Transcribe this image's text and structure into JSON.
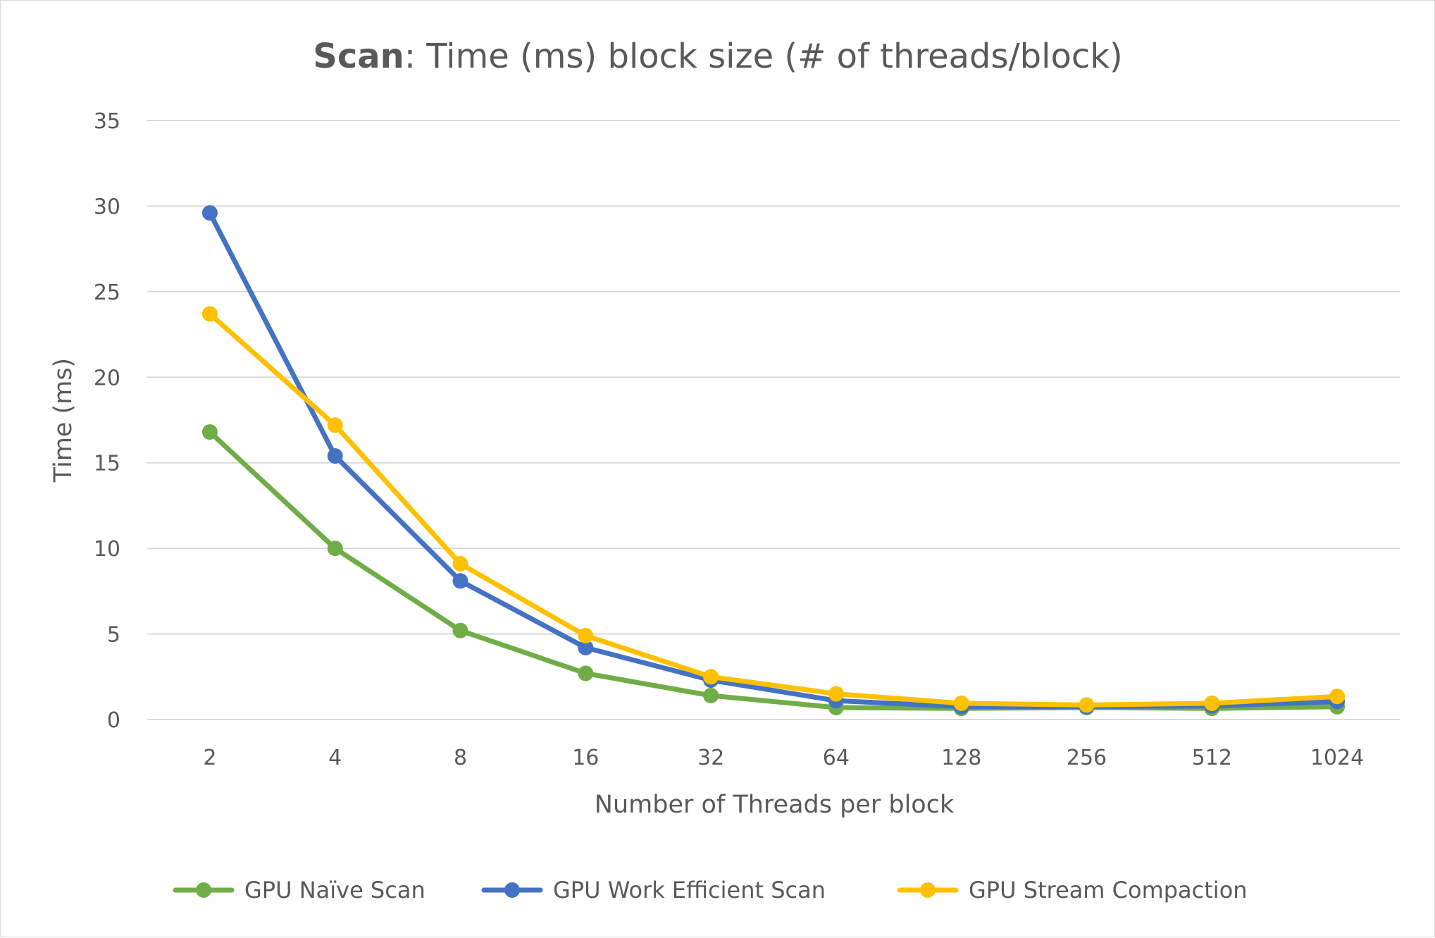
{
  "chart_data": {
    "type": "line",
    "title_bold": "Scan",
    "title_rest": ": Time (ms)  block size (# of threads/block)",
    "xlabel": "Number of Threads per block",
    "ylabel": "Time (ms)",
    "categories": [
      "2",
      "4",
      "8",
      "16",
      "32",
      "64",
      "128",
      "256",
      "512",
      "1024"
    ],
    "ylim": [
      0,
      35
    ],
    "yticks": [
      "0",
      "5",
      "10",
      "15",
      "20",
      "25",
      "30",
      "35"
    ],
    "grid": true,
    "legend_position": "bottom",
    "series": [
      {
        "name": "GPU Naïve Scan",
        "color": "#70ad47",
        "values": [
          16.8,
          10.0,
          5.2,
          2.7,
          1.4,
          0.7,
          0.65,
          0.7,
          0.65,
          0.75
        ]
      },
      {
        "name": "GPU Work Efficient Scan",
        "color": "#4472c4",
        "values": [
          29.6,
          15.4,
          8.1,
          4.2,
          2.3,
          1.1,
          0.75,
          0.75,
          0.8,
          1.05
        ]
      },
      {
        "name": "GPU Stream Compaction",
        "color": "#ffc000",
        "values": [
          23.7,
          17.2,
          9.1,
          4.9,
          2.5,
          1.5,
          0.95,
          0.85,
          0.95,
          1.35
        ]
      }
    ]
  }
}
